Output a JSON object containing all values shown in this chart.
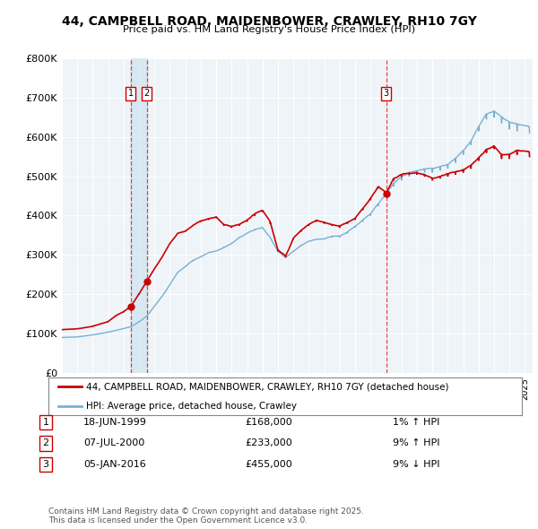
{
  "title": "44, CAMPBELL ROAD, MAIDENBOWER, CRAWLEY, RH10 7GY",
  "subtitle": "Price paid vs. HM Land Registry's House Price Index (HPI)",
  "ylim": [
    0,
    800000
  ],
  "yticks": [
    0,
    100000,
    200000,
    300000,
    400000,
    500000,
    600000,
    700000,
    800000
  ],
  "ytick_labels": [
    "£0",
    "£100K",
    "£200K",
    "£300K",
    "£400K",
    "£500K",
    "£600K",
    "£700K",
    "£800K"
  ],
  "xlim_start": 1995.0,
  "xlim_end": 2025.5,
  "sales": [
    {
      "date": 1999.46,
      "price": 168000,
      "label": "1"
    },
    {
      "date": 2000.51,
      "price": 233000,
      "label": "2"
    },
    {
      "date": 2016.02,
      "price": 455000,
      "label": "3"
    }
  ],
  "sale_vline_dates": [
    1999.46,
    2000.51,
    2016.02
  ],
  "legend_property_label": "44, CAMPBELL ROAD, MAIDENBOWER, CRAWLEY, RH10 7GY (detached house)",
  "legend_hpi_label": "HPI: Average price, detached house, Crawley",
  "table_rows": [
    {
      "num": "1",
      "date": "18-JUN-1999",
      "price": "£168,000",
      "change": "1% ↑ HPI"
    },
    {
      "num": "2",
      "date": "07-JUL-2000",
      "price": "£233,000",
      "change": "9% ↑ HPI"
    },
    {
      "num": "3",
      "date": "05-JAN-2016",
      "price": "£455,000",
      "change": "9% ↓ HPI"
    }
  ],
  "footer": "Contains HM Land Registry data © Crown copyright and database right 2025.\nThis data is licensed under the Open Government Licence v3.0.",
  "property_line_color": "#cc0000",
  "hpi_line_color": "#7ab0d4",
  "vline_color": "#dd4444",
  "vfill_color": "#d0e4f0",
  "background_color": "#ffffff",
  "chart_bg_color": "#eef4f8",
  "grid_color": "#ffffff"
}
